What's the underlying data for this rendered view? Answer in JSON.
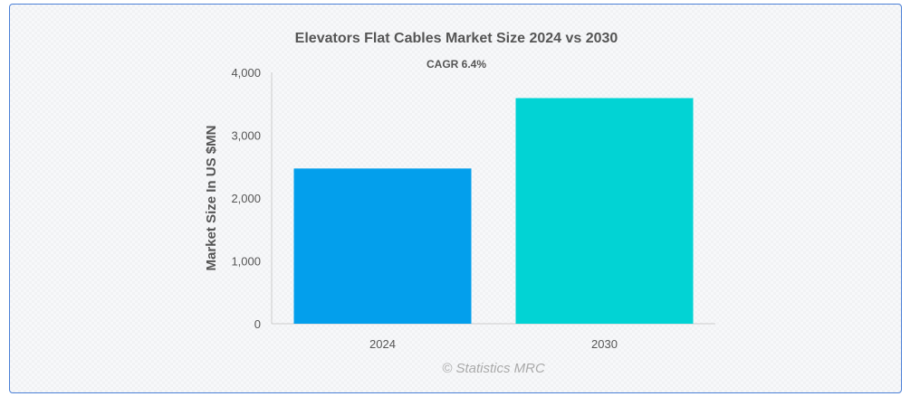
{
  "chart_data": {
    "type": "bar",
    "title": "Elevators Flat Cables Market Size 2024 vs 2030",
    "subtitle": "CAGR 6.4%",
    "ylabel": "Market Size In US $MN",
    "xlabel": "",
    "categories": [
      "2024",
      "2030"
    ],
    "values": [
      2470,
      3590
    ],
    "colors": [
      "#039fec",
      "#02d3d4"
    ],
    "ylim": [
      0,
      4000
    ],
    "yticks": [
      "0",
      "1,000",
      "2,000",
      "3,000",
      "4,000"
    ],
    "ytick_values": [
      0,
      1000,
      2000,
      3000,
      4000
    ],
    "grid": false,
    "legend": "none",
    "credit": "© Statistics MRC"
  }
}
